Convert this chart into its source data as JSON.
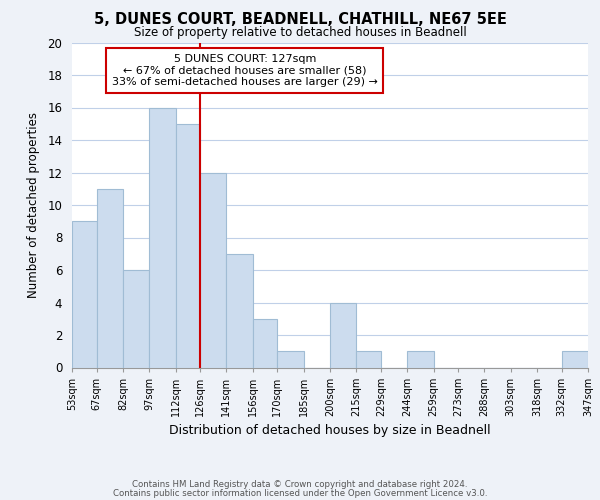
{
  "title": "5, DUNES COURT, BEADNELL, CHATHILL, NE67 5EE",
  "subtitle": "Size of property relative to detached houses in Beadnell",
  "xlabel": "Distribution of detached houses by size in Beadnell",
  "ylabel": "Number of detached properties",
  "bar_color": "#ccdcee",
  "bar_edge_color": "#a0bcd4",
  "bins": [
    53,
    67,
    82,
    97,
    112,
    126,
    141,
    156,
    170,
    185,
    200,
    215,
    229,
    244,
    259,
    273,
    288,
    303,
    318,
    332,
    347
  ],
  "counts": [
    9,
    11,
    6,
    16,
    15,
    12,
    7,
    3,
    1,
    0,
    4,
    1,
    0,
    1,
    0,
    0,
    0,
    0,
    0,
    1
  ],
  "tick_labels": [
    "53sqm",
    "67sqm",
    "82sqm",
    "97sqm",
    "112sqm",
    "126sqm",
    "141sqm",
    "156sqm",
    "170sqm",
    "185sqm",
    "200sqm",
    "215sqm",
    "229sqm",
    "244sqm",
    "259sqm",
    "273sqm",
    "288sqm",
    "303sqm",
    "318sqm",
    "332sqm",
    "347sqm"
  ],
  "ylim": [
    0,
    20
  ],
  "yticks": [
    0,
    2,
    4,
    6,
    8,
    10,
    12,
    14,
    16,
    18,
    20
  ],
  "vline_x": 126,
  "annotation_title": "5 DUNES COURT: 127sqm",
  "annotation_line1": "← 67% of detached houses are smaller (58)",
  "annotation_line2": "33% of semi-detached houses are larger (29) →",
  "annotation_box_color": "white",
  "annotation_border_color": "#cc0000",
  "vline_color": "#cc0000",
  "footer1": "Contains HM Land Registry data © Crown copyright and database right 2024.",
  "footer2": "Contains public sector information licensed under the Open Government Licence v3.0.",
  "background_color": "#eef2f8",
  "plot_background": "white",
  "grid_color": "#c0d0e8"
}
